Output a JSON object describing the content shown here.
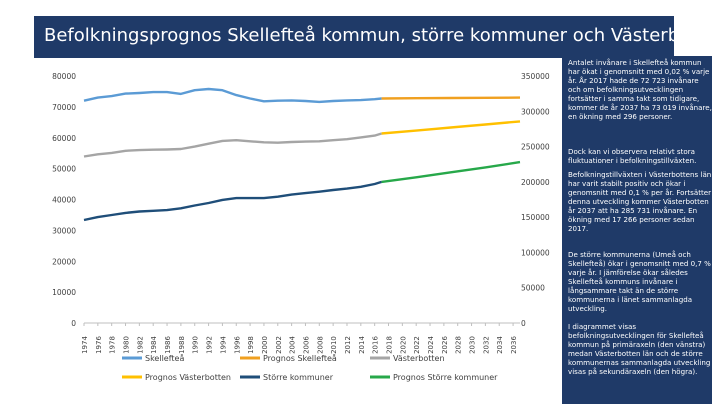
{
  "header": {
    "title": "Befolkningsprognos Skellefteå kommun, större kommuner och Västerbotten"
  },
  "sidebar": {
    "paragraphs": [
      "Antalet invånare i Skellefteå kommun har ökat i genomsnitt med 0,02 % varje år. År 2017 hade de 72 723 invånare och om befolkningsutvecklingen fortsätter i samma takt som tidigare, kommer de år 2037 ha 73 019 invånare, en ökning med 296 personer.",
      "Dock kan vi observera relativt stora fluktuationer i befolkningstillväxten.",
      "Befolkningstillväxten i Västerbottens län har varit stabilt positiv och ökar i genomsnitt med 0,1 % per år. Fortsätter denna utveckling kommer Västerbotten år 2037 att ha 285 731 invånare. En ökning med 17 266 personer sedan 2017.",
      "De större kommunerna (Umeå och Skellefteå) ökar i genomsnitt med 0,7 % varje år. I jämförelse ökar således Skellefteå kommuns invånare i långsammare takt än de större kommunerna i länet sammanlagda utveckling.",
      "I diagrammet visas befolkningsutvecklingen för Skellefteå kommun på primäraxeln (den vänstra) medan Västerbotten län och de större kommunernas sammanlagda utveckling visas på sekundäraxeln (den högra)."
    ]
  },
  "chart_data": {
    "type": "line",
    "title": "",
    "xlabel": "",
    "ylabel": "",
    "x_ticks": [
      "1974",
      "1976",
      "1978",
      "1980",
      "1982",
      "1984",
      "1986",
      "1988",
      "1990",
      "1992",
      "1994",
      "1996",
      "1998",
      "2000",
      "2002",
      "2004",
      "2006",
      "2008",
      "2010",
      "2012",
      "2014",
      "2016",
      "2018",
      "2020",
      "2022",
      "2024",
      "2026",
      "2028",
      "2030",
      "2032",
      "2034",
      "2036"
    ],
    "xlim": [
      1974,
      2037
    ],
    "y_left": {
      "ylim": [
        0,
        80000
      ],
      "ticks": [
        0,
        10000,
        20000,
        30000,
        40000,
        50000,
        60000,
        70000,
        80000
      ]
    },
    "y_right": {
      "ylim": [
        0,
        350000
      ],
      "ticks": [
        0,
        50000,
        100000,
        150000,
        200000,
        250000,
        300000,
        350000
      ]
    },
    "grid": false,
    "legend_position": "bottom",
    "series": [
      {
        "name": "Skellefteå",
        "axis": "left",
        "color": "#5b9bd5",
        "x": [
          1974,
          1976,
          1978,
          1980,
          1982,
          1984,
          1986,
          1988,
          1990,
          1992,
          1994,
          1996,
          1998,
          2000,
          2002,
          2004,
          2006,
          2008,
          2010,
          2012,
          2014,
          2016,
          2017
        ],
        "y": [
          72000,
          73000,
          73500,
          74300,
          74500,
          74800,
          74800,
          74200,
          75400,
          75800,
          75400,
          73800,
          72700,
          71800,
          72000,
          72100,
          71900,
          71600,
          71900,
          72100,
          72200,
          72500,
          72723
        ]
      },
      {
        "name": "Prognos Skellefteå",
        "axis": "left",
        "color": "#f0a020",
        "x": [
          2017,
          2022,
          2027,
          2032,
          2037
        ],
        "y": [
          72723,
          72800,
          72880,
          72950,
          73019
        ]
      },
      {
        "name": "Västerbotten",
        "axis": "right",
        "color": "#a5a5a5",
        "x": [
          1974,
          1976,
          1978,
          1980,
          1982,
          1984,
          1986,
          1988,
          1990,
          1992,
          1994,
          1996,
          1998,
          2000,
          2002,
          2004,
          2006,
          2008,
          2010,
          2012,
          2014,
          2016,
          2017
        ],
        "y": [
          236000,
          239000,
          241000,
          244000,
          245000,
          245500,
          245800,
          246500,
          250000,
          254000,
          258000,
          259000,
          257500,
          256000,
          255500,
          256500,
          257000,
          257500,
          259000,
          260500,
          263000,
          265500,
          268465
        ]
      },
      {
        "name": "Prognos Västerbotten",
        "axis": "right",
        "color": "#ffc000",
        "x": [
          2017,
          2022,
          2027,
          2032,
          2037
        ],
        "y": [
          268465,
          272700,
          277000,
          281300,
          285731
        ]
      },
      {
        "name": "Större kommuner",
        "axis": "right",
        "color": "#1f4e79",
        "x": [
          1974,
          1976,
          1978,
          1980,
          1982,
          1984,
          1986,
          1988,
          1990,
          1992,
          1994,
          1996,
          1998,
          2000,
          2002,
          2004,
          2006,
          2008,
          2010,
          2012,
          2014,
          2016,
          2017
        ],
        "y": [
          146000,
          150000,
          153000,
          156000,
          158000,
          159000,
          160000,
          162500,
          166500,
          170000,
          174500,
          177000,
          177000,
          177000,
          179000,
          182000,
          184000,
          186000,
          188500,
          190500,
          193000,
          197000,
          200000
        ]
      },
      {
        "name": "Prognos Större kommuner",
        "axis": "right",
        "color": "#27a84a",
        "x": [
          2017,
          2022,
          2027,
          2032,
          2037
        ],
        "y": [
          200000,
          206500,
          213500,
          220500,
          228000
        ]
      }
    ]
  }
}
